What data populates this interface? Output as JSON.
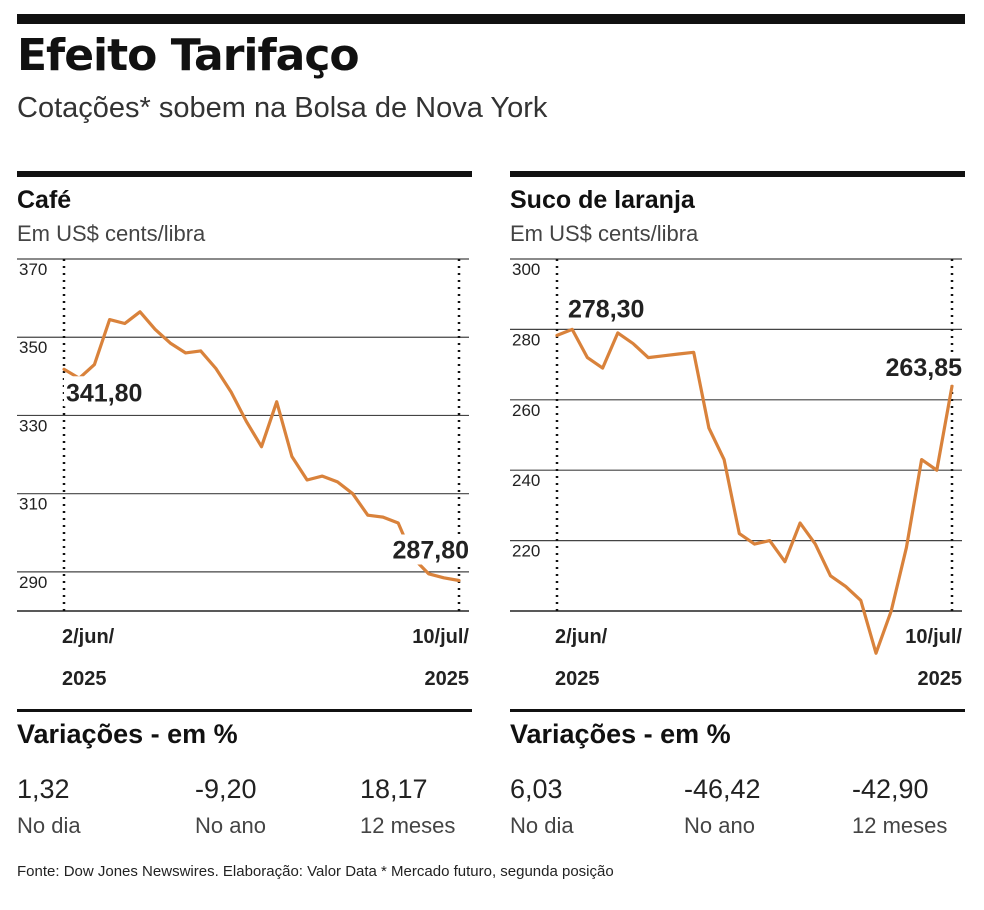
{
  "header": {
    "title": "Efeito Tarifaço",
    "subtitle": "Cotações* sobem na Bolsa de Nova York"
  },
  "colors": {
    "line": "#d9823b",
    "rule": "#111111",
    "grid": "#444444"
  },
  "chart_data": [
    {
      "type": "line",
      "title": "Café",
      "ylabel": "Em US$ cents/libra",
      "ylim": [
        280,
        370
      ],
      "yticks": [
        290,
        310,
        330,
        350,
        370
      ],
      "x_start_label": [
        "2/jun/",
        "2025"
      ],
      "x_end_label": [
        "10/jul/",
        "2025"
      ],
      "series": [
        {
          "values": [
            341.8,
            339.5,
            343,
            354.5,
            353.5,
            356.5,
            352,
            348.5,
            346,
            346.5,
            342,
            336,
            328.5,
            322,
            333.5,
            319.5,
            313.5,
            314.5,
            313,
            310,
            304.5,
            304,
            302.5,
            293.5,
            289.5,
            288.5,
            287.8
          ]
        }
      ],
      "annotations": [
        {
          "label": "341,80",
          "point": "start"
        },
        {
          "label": "287,80",
          "point": "end"
        }
      ],
      "variations_title": "Variações - em %",
      "variations": [
        {
          "value": "1,32",
          "label": "No dia"
        },
        {
          "value": "-9,20",
          "label": "No ano"
        },
        {
          "value": "18,17",
          "label": "12 meses"
        }
      ]
    },
    {
      "type": "line",
      "title": "Suco de laranja",
      "ylabel": "Em US$ cents/libra",
      "ylim": [
        200,
        300
      ],
      "yticks": [
        220,
        240,
        260,
        280,
        300
      ],
      "x_start_label": [
        "2/jun/",
        "2025"
      ],
      "x_end_label": [
        "10/jul/",
        "2025"
      ],
      "series": [
        {
          "values": [
            278.3,
            280,
            272,
            269,
            279,
            276,
            272,
            272.5,
            273,
            273.5,
            252,
            243,
            222,
            219,
            220,
            214,
            225,
            219,
            210,
            207,
            203,
            188,
            200,
            218,
            243,
            240,
            263.85
          ]
        }
      ],
      "annotations": [
        {
          "label": "278,30",
          "point": "start"
        },
        {
          "label": "263,85",
          "point": "end"
        }
      ],
      "variations_title": "Variações - em %",
      "variations": [
        {
          "value": "6,03",
          "label": "No dia"
        },
        {
          "value": "-46,42",
          "label": "No ano"
        },
        {
          "value": "-42,90",
          "label": "12 meses"
        }
      ]
    }
  ],
  "footer": "Fonte: Dow Jones Newswires. Elaboração: Valor Data * Mercado futuro, segunda posição"
}
